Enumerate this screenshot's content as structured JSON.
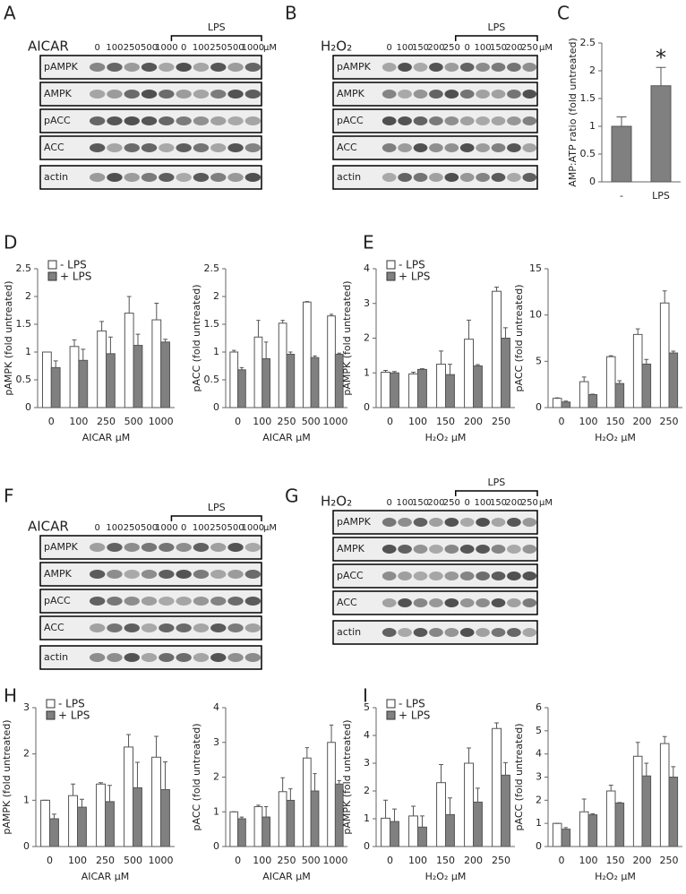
{
  "panel_labels": [
    "A",
    "B",
    "C",
    "D",
    "E",
    "F",
    "G",
    "H",
    "I"
  ],
  "blots": [
    {
      "treatment": "AICAR",
      "unit": "μM",
      "group": "LPS",
      "lanes": [
        "0",
        "100",
        "250",
        "500",
        "1000",
        "0",
        "100",
        "250",
        "500",
        "1000"
      ],
      "proteins": [
        "pAMPK",
        "AMPK",
        "pACC",
        "ACC",
        "actin"
      ]
    },
    {
      "treatment": "H₂O₂",
      "unit": "μM",
      "group": "LPS",
      "lanes": [
        "0",
        "100",
        "150",
        "200",
        "250",
        "0",
        "100",
        "150",
        "200",
        "250"
      ],
      "proteins": [
        "pAMPK",
        "AMPK",
        "pACC",
        "ACC",
        "actin"
      ]
    },
    {
      "treatment": "AICAR",
      "unit": "μM",
      "group": "LPS",
      "lanes": [
        "0",
        "100",
        "250",
        "500",
        "1000",
        "0",
        "100",
        "250",
        "500",
        "1000"
      ],
      "proteins": [
        "pAMPK",
        "AMPK",
        "pACC",
        "ACC",
        "actin"
      ]
    },
    {
      "treatment": "H₂O₂",
      "unit": "μM",
      "group": "LPS",
      "lanes": [
        "0",
        "100",
        "150",
        "200",
        "250",
        "0",
        "100",
        "150",
        "200",
        "250"
      ],
      "proteins": [
        "pAMPK",
        "AMPK",
        "pACC",
        "ACC",
        "actin"
      ]
    }
  ],
  "chart_data": [
    {
      "type": "bar",
      "y_label": "AMP:ATP ratio (fold untreated)",
      "categories": [
        "-",
        "LPS"
      ],
      "annotation": "*",
      "series": [
        {
          "color": "#808080",
          "values": [
            1.0,
            1.73
          ],
          "errors": [
            0.17,
            0.33
          ]
        }
      ],
      "ylim": [
        0,
        2.5
      ],
      "yticks": [
        0,
        0.5,
        1,
        1.5,
        2,
        2.5
      ]
    },
    {
      "type": "bar",
      "y_label": "pAMPK (fold untreated)",
      "x_label": "AICAR μM",
      "categories": [
        "0",
        "100",
        "250",
        "500",
        "1000"
      ],
      "series": [
        {
          "name": "- LPS",
          "color": "#ffffff",
          "values": [
            1.0,
            1.1,
            1.38,
            1.7,
            1.58
          ],
          "errors": [
            0,
            0.12,
            0.17,
            0.3,
            0.3
          ]
        },
        {
          "name": "+ LPS",
          "color": "#808080",
          "values": [
            0.72,
            0.85,
            0.97,
            1.12,
            1.18
          ],
          "errors": [
            0.12,
            0.2,
            0.3,
            0.2,
            0.05
          ]
        }
      ],
      "ylim": [
        0,
        2.5
      ],
      "yticks": [
        0,
        0.5,
        1,
        1.5,
        2,
        2.5
      ]
    },
    {
      "type": "bar",
      "y_label": "pACC (fold untreated)",
      "x_label": "AICAR μM",
      "categories": [
        "0",
        "100",
        "250",
        "500",
        "1000"
      ],
      "series": [
        {
          "color": "#ffffff",
          "values": [
            1.0,
            1.27,
            1.52,
            1.9,
            1.65
          ],
          "errors": [
            0.03,
            0.3,
            0.05,
            0.01,
            0.03
          ]
        },
        {
          "color": "#808080",
          "values": [
            0.68,
            0.88,
            0.96,
            0.9,
            0.96
          ],
          "errors": [
            0.04,
            0.3,
            0.04,
            0.03,
            0.02
          ]
        }
      ],
      "ylim": [
        0,
        2.5
      ],
      "yticks": [
        0,
        0.5,
        1,
        1.5,
        2,
        2.5
      ]
    },
    {
      "type": "bar",
      "y_label": "pAMPK (fold untreated)",
      "x_label": "H₂O₂ μM",
      "categories": [
        "0",
        "100",
        "150",
        "200",
        "250"
      ],
      "series": [
        {
          "name": "- LPS",
          "color": "#ffffff",
          "values": [
            1.02,
            0.97,
            1.25,
            1.97,
            3.35
          ],
          "errors": [
            0.05,
            0.05,
            0.38,
            0.55,
            0.12
          ]
        },
        {
          "name": "+ LPS",
          "color": "#808080",
          "values": [
            1.0,
            1.1,
            0.95,
            1.2,
            2.0
          ],
          "errors": [
            0.04,
            0.02,
            0.3,
            0.04,
            0.3
          ]
        }
      ],
      "ylim": [
        0,
        4
      ],
      "yticks": [
        0,
        1,
        2,
        3,
        4
      ]
    },
    {
      "type": "bar",
      "y_label": "pACC (fold untreated)",
      "x_label": "H₂O₂ μM",
      "categories": [
        "0",
        "100",
        "150",
        "200",
        "250"
      ],
      "series": [
        {
          "color": "#ffffff",
          "values": [
            1.0,
            2.8,
            5.5,
            7.9,
            11.3
          ],
          "errors": [
            0.05,
            0.5,
            0.1,
            0.6,
            1.3
          ]
        },
        {
          "color": "#808080",
          "values": [
            0.6,
            1.4,
            2.6,
            4.7,
            5.9
          ],
          "errors": [
            0.1,
            0.05,
            0.3,
            0.5,
            0.2
          ]
        }
      ],
      "ylim": [
        0,
        15
      ],
      "yticks": [
        0,
        5,
        10,
        15
      ]
    },
    {
      "type": "bar",
      "y_label": "pAMPK (fold untreated)",
      "x_label": "AICAR μM",
      "categories": [
        "0",
        "100",
        "250",
        "500",
        "1000"
      ],
      "series": [
        {
          "name": "- LPS",
          "color": "#ffffff",
          "values": [
            1.0,
            1.1,
            1.35,
            2.15,
            1.93
          ],
          "errors": [
            0,
            0.25,
            0.03,
            0.27,
            0.45
          ]
        },
        {
          "name": "+ LPS",
          "color": "#808080",
          "values": [
            0.6,
            0.85,
            0.97,
            1.27,
            1.23
          ],
          "errors": [
            0.1,
            0.17,
            0.35,
            0.55,
            0.6
          ]
        }
      ],
      "ylim": [
        0,
        3
      ],
      "yticks": [
        0,
        1,
        2,
        3
      ]
    },
    {
      "type": "bar",
      "y_label": "pACC (fold untreated)",
      "x_label": "AICAR μM",
      "categories": [
        "0",
        "100",
        "250",
        "500",
        "1000"
      ],
      "series": [
        {
          "color": "#ffffff",
          "values": [
            1.0,
            1.15,
            1.58,
            2.55,
            3.0
          ],
          "errors": [
            0,
            0.04,
            0.4,
            0.3,
            0.5
          ]
        },
        {
          "color": "#808080",
          "values": [
            0.8,
            0.85,
            1.33,
            1.6,
            1.8
          ],
          "errors": [
            0.05,
            0.3,
            0.33,
            0.5,
            0.1
          ]
        }
      ],
      "ylim": [
        0,
        4
      ],
      "yticks": [
        0,
        1,
        2,
        3,
        4
      ]
    },
    {
      "type": "bar",
      "y_label": "pAMPK (fold untreated)",
      "x_label": "H₂O₂ μM",
      "categories": [
        "0",
        "100",
        "150",
        "200",
        "250"
      ],
      "series": [
        {
          "name": "- LPS",
          "color": "#ffffff",
          "values": [
            1.02,
            1.1,
            2.3,
            3.0,
            4.25
          ],
          "errors": [
            0.65,
            0.35,
            0.65,
            0.55,
            0.2
          ]
        },
        {
          "name": "+ LPS",
          "color": "#808080",
          "values": [
            0.9,
            0.7,
            1.15,
            1.6,
            2.57
          ],
          "errors": [
            0.45,
            0.4,
            0.6,
            0.5,
            0.45
          ]
        }
      ],
      "ylim": [
        0,
        5
      ],
      "yticks": [
        0,
        1,
        2,
        3,
        4,
        5
      ]
    },
    {
      "type": "bar",
      "y_label": "pACC (fold untreated)",
      "x_label": "H₂O₂ μM",
      "categories": [
        "0",
        "100",
        "150",
        "200",
        "250"
      ],
      "series": [
        {
          "color": "#ffffff",
          "values": [
            1.0,
            1.5,
            2.4,
            3.9,
            4.45
          ],
          "errors": [
            0,
            0.55,
            0.25,
            0.6,
            0.3
          ]
        },
        {
          "color": "#808080",
          "values": [
            0.75,
            1.37,
            1.88,
            3.05,
            3.0
          ],
          "errors": [
            0.07,
            0.05,
            0.02,
            0.55,
            0.45
          ]
        }
      ],
      "ylim": [
        0,
        6
      ],
      "yticks": [
        0,
        1,
        2,
        3,
        4,
        5,
        6
      ]
    }
  ]
}
